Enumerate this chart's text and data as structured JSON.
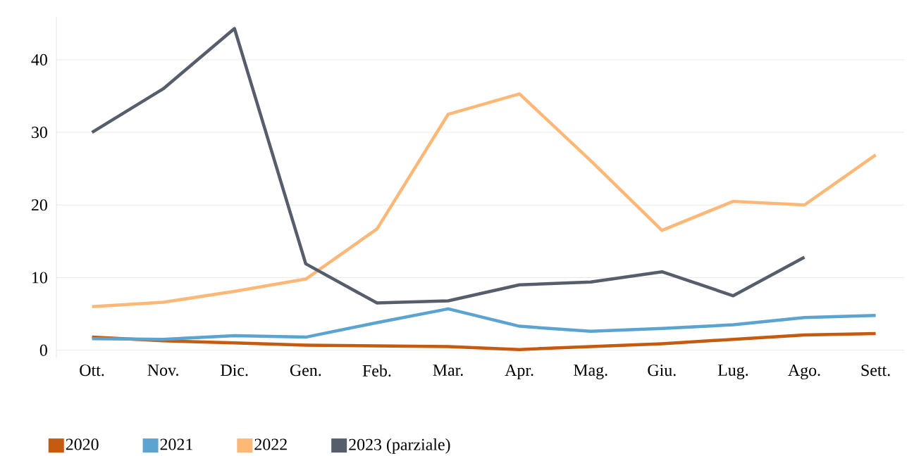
{
  "chart_data": {
    "type": "line",
    "categories": [
      "Ott.",
      "Nov.",
      "Dic.",
      "Gen.",
      "Feb.",
      "Mar.",
      "Apr.",
      "Mag.",
      "Giu.",
      "Lug.",
      "Ago.",
      "Sett."
    ],
    "series": [
      {
        "name": "2020",
        "color": "#c55a11",
        "values": [
          1.8,
          1.3,
          1.0,
          0.7,
          0.6,
          0.5,
          0.1,
          0.5,
          0.9,
          1.5,
          2.1,
          2.3
        ]
      },
      {
        "name": "2021",
        "color": "#5ba3d0",
        "values": [
          1.6,
          1.5,
          2.0,
          1.8,
          3.8,
          5.7,
          3.3,
          2.6,
          3.0,
          3.5,
          4.5,
          4.8
        ]
      },
      {
        "name": "2022",
        "color": "#fdb878",
        "values": [
          6.0,
          6.6,
          8.1,
          9.8,
          16.7,
          32.5,
          35.3,
          26.1,
          16.5,
          20.5,
          20.0,
          26.9
        ]
      },
      {
        "name": "2023 (parziale)",
        "color": "#565d6b",
        "values": [
          30.0,
          36.0,
          44.3,
          11.9,
          6.5,
          6.8,
          9.0,
          9.4,
          10.8,
          7.5,
          12.8,
          null
        ]
      }
    ],
    "ylim": [
      -1,
      46
    ],
    "yticks": [
      0,
      10,
      20,
      30,
      40
    ],
    "grid": "y",
    "legend": "bottom",
    "marker": "none",
    "line_style": "solid"
  }
}
